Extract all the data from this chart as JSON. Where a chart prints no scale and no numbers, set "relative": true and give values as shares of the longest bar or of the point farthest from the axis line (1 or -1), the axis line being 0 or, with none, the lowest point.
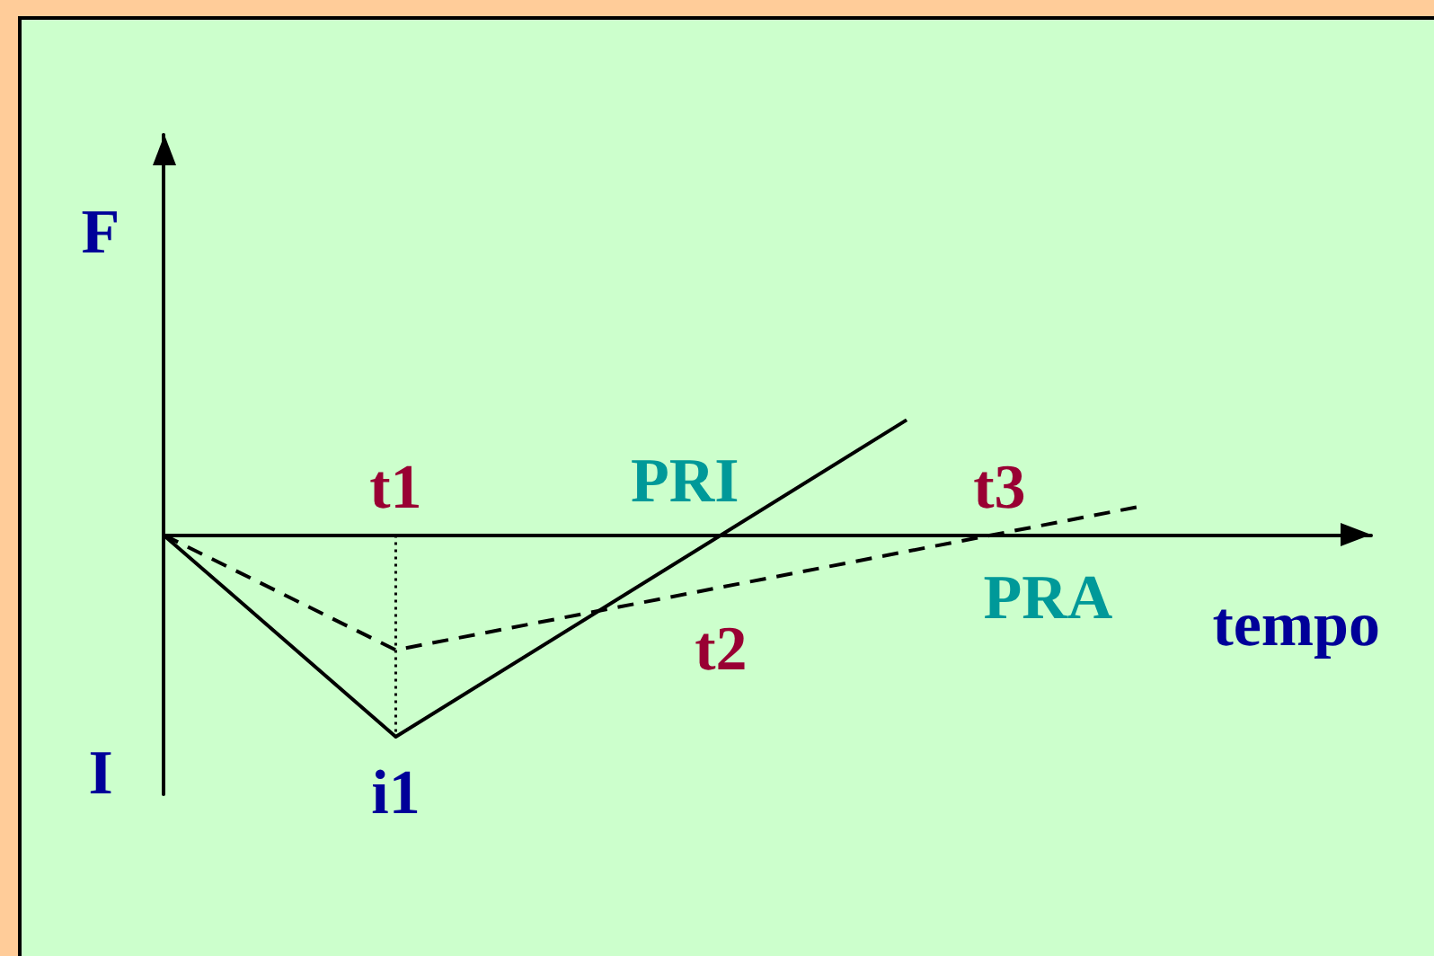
{
  "chart_data": {
    "type": "line",
    "relative": true,
    "marker": "none",
    "xlabel": "tempo",
    "categories": [
      null,
      null,
      null,
      null,
      null,
      "t1",
      null,
      null,
      null,
      null,
      null,
      null,
      "t2",
      null,
      null,
      null,
      null,
      null,
      "t3",
      null,
      null,
      null,
      null,
      null,
      null,
      null,
      null
    ],
    "series": [
      {
        "color": "#000000",
        "line_style": "solid",
        "values": [
          0,
          null,
          null,
          null,
          null,
          -1,
          null,
          null,
          null,
          null,
          null,
          null,
          null,
          null,
          null,
          null,
          0.57,
          null,
          null,
          null,
          null,
          null,
          null,
          null,
          null,
          null,
          null
        ]
      },
      {
        "color": "#000000",
        "line_style": "dashed",
        "values": [
          0,
          null,
          null,
          null,
          null,
          -0.57,
          null,
          null,
          null,
          null,
          null,
          null,
          null,
          null,
          null,
          null,
          null,
          null,
          null,
          null,
          null,
          0.14,
          null,
          null,
          null,
          null,
          null
        ]
      },
      {
        "color": "#000000",
        "line_style": "dotted",
        "x": [
          "t1",
          "t1"
        ],
        "values": [
          0,
          -1
        ]
      }
    ],
    "annotations": [
      "F",
      "I",
      "PRI",
      "PRA",
      {
        "text": "i1",
        "x": "t1",
        "y": -1
      }
    ]
  }
}
